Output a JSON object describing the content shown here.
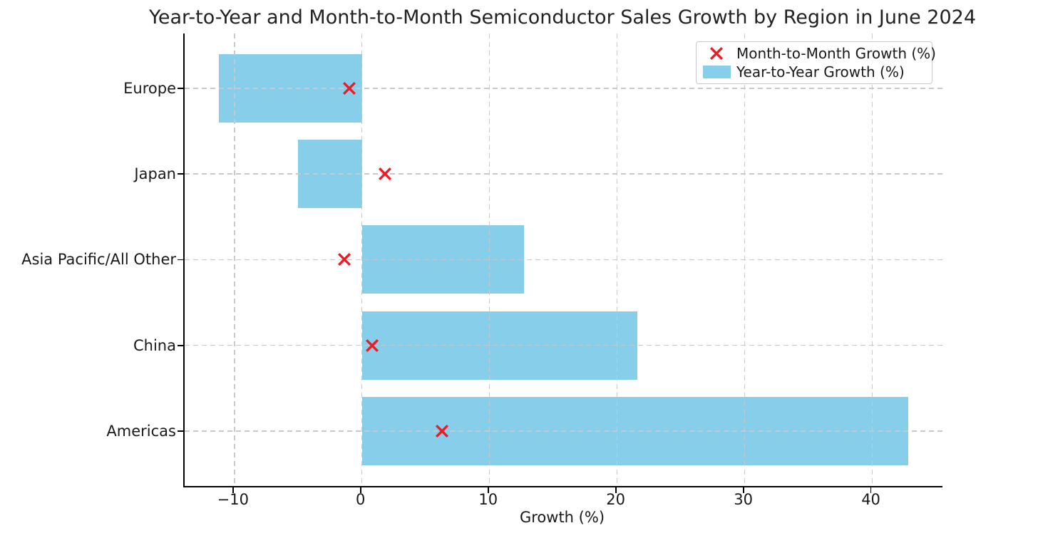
{
  "chart_data": {
    "type": "bar",
    "orientation": "horizontal",
    "title": "Year-to-Year and Month-to-Month Semiconductor Sales Growth by Region in June 2024",
    "xlabel": "Growth (%)",
    "ylabel": "",
    "categories_top_to_bottom": [
      "Europe",
      "Japan",
      "Asia Pacific/All Other",
      "China",
      "Americas"
    ],
    "series": [
      {
        "name": "Month-to-Month Growth (%)",
        "render": "scatter-x-marker",
        "color": "#ec1c24",
        "values": [
          -1.0,
          1.8,
          -1.4,
          0.8,
          6.3
        ]
      },
      {
        "name": "Year-to-Year Growth (%)",
        "render": "bar",
        "color": "#87ceeb",
        "values": [
          -11.2,
          -5.0,
          12.7,
          21.6,
          42.8
        ]
      }
    ],
    "x_ticks": [
      -10,
      0,
      10,
      20,
      30,
      40
    ],
    "xlim": [
      -13.9,
      45.5
    ],
    "grid": "both-dashed-lightgray",
    "grid_above_bars": true,
    "legend_position": "upper right",
    "colors": {
      "bar_fill": "#87ceeb",
      "marker": "#ec1c24",
      "grid": "#c9c9c9",
      "spine": "#000000",
      "background": "#ffffff"
    }
  }
}
